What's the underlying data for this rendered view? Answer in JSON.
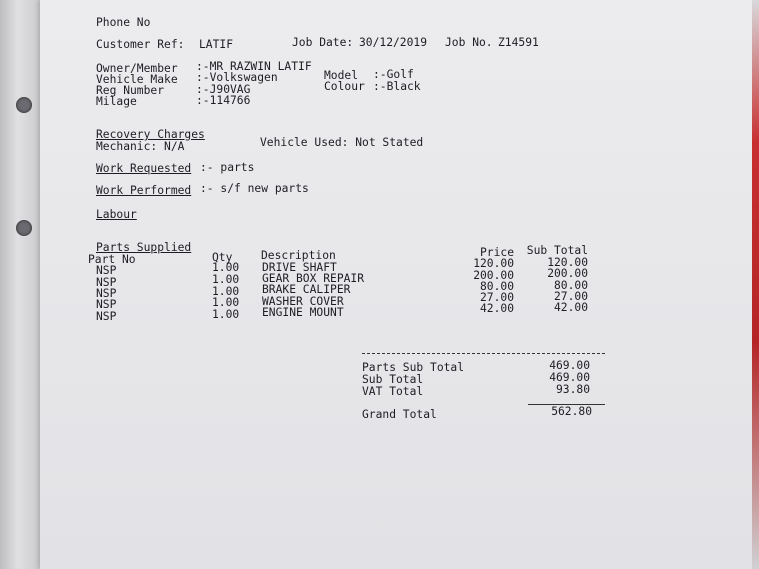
{
  "header": {
    "phone_label": "Phone No",
    "customer_ref_label": "Customer Ref:",
    "customer_ref": "LATIF",
    "job_date_label": "Job Date:",
    "job_date": "30/12/2019",
    "job_no_label": "Job No.",
    "job_no": "Z14591"
  },
  "vehicle": {
    "owner_label": "Owner/Member",
    "owner": ":-MR RAZWIN LATIF",
    "make_label": "Vehicle Make",
    "make": ":-Volkswagen",
    "reg_label": "Reg Number",
    "reg": ":-J90VAG",
    "milage_label": "Milage",
    "milage": ":-114766",
    "model_label": "Model",
    "model": ":-Golf",
    "colour_label": "Colour",
    "colour": ":-Black"
  },
  "work": {
    "recovery_label": "Recovery Charges",
    "mechanic": "Mechanic: N/A",
    "vehicle_used": "Vehicle Used: Not Stated",
    "requested_label": "Work Requested",
    "requested": ":- parts",
    "performed_label": "Work Performed",
    "performed": ":- s/f new parts",
    "labour_label": "Labour"
  },
  "parts": {
    "title": "Parts Supplied",
    "columns": {
      "part_no": "Part No",
      "qty": "Qty",
      "description": "Description",
      "price": "Price",
      "sub_total": "Sub Total"
    },
    "rows": [
      {
        "part_no": "NSP",
        "qty": "1.00",
        "description": "DRIVE SHAFT",
        "price": "120.00",
        "sub_total": "120.00"
      },
      {
        "part_no": "NSP",
        "qty": "1.00",
        "description": "GEAR BOX REPAIR",
        "price": "200.00",
        "sub_total": "200.00"
      },
      {
        "part_no": "NSP",
        "qty": "1.00",
        "description": "BRAKE CALIPER",
        "price": "80.00",
        "sub_total": "80.00"
      },
      {
        "part_no": "NSP",
        "qty": "1.00",
        "description": "WASHER COVER",
        "price": "27.00",
        "sub_total": "27.00"
      },
      {
        "part_no": "NSP",
        "qty": "1.00",
        "description": "ENGINE MOUNT",
        "price": "42.00",
        "sub_total": "42.00"
      }
    ]
  },
  "totals": {
    "parts_sub_total_label": "Parts Sub Total",
    "parts_sub_total": "469.00",
    "sub_total_label": "Sub Total",
    "sub_total": "469.00",
    "vat_label": "VAT Total",
    "vat": "93.80",
    "grand_total_label": "Grand Total",
    "grand_total": "562.80"
  }
}
